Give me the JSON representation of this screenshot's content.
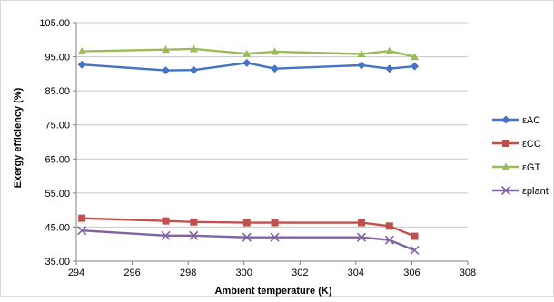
{
  "chart_data": {
    "type": "line",
    "xlabel": "Ambient temperature (K)",
    "ylabel": "Exergy efficiency (%)",
    "xlim": [
      294,
      308
    ],
    "ylim": [
      35,
      105
    ],
    "x_ticks": [
      "294",
      "296",
      "298",
      "300",
      "302",
      "304",
      "306",
      "308"
    ],
    "y_ticks": [
      "105.00",
      "95.00",
      "85.00",
      "75.00",
      "65.00",
      "55.00",
      "45.00",
      "35.00"
    ],
    "grid": "horizontal",
    "legend_position": "right",
    "series": [
      {
        "name": "εAC",
        "color": "#4472c4",
        "marker": "diamond",
        "x": [
          294.2,
          297.2,
          298.2,
          300.1,
          301.1,
          304.2,
          305.2,
          306.1
        ],
        "values": [
          92.7,
          91.0,
          91.1,
          93.2,
          91.5,
          92.5,
          91.5,
          92.2
        ]
      },
      {
        "name": "εCC",
        "color": "#c0504d",
        "marker": "square",
        "x": [
          294.2,
          297.2,
          298.2,
          300.1,
          301.1,
          304.2,
          305.2,
          306.1
        ],
        "values": [
          47.6,
          46.8,
          46.5,
          46.3,
          46.3,
          46.3,
          45.3,
          42.3
        ]
      },
      {
        "name": "εGT",
        "color": "#9bbb59",
        "marker": "triangle",
        "x": [
          294.2,
          297.2,
          298.2,
          300.1,
          301.1,
          304.2,
          305.2,
          306.1
        ],
        "values": [
          96.6,
          97.1,
          97.3,
          95.9,
          96.5,
          95.8,
          96.7,
          95.0
        ]
      },
      {
        "name": "εplant",
        "color": "#8064a2",
        "marker": "x",
        "x": [
          294.2,
          297.2,
          298.2,
          300.1,
          301.1,
          304.2,
          305.2,
          306.1
        ],
        "values": [
          44.0,
          42.5,
          42.5,
          42.0,
          42.0,
          42.0,
          41.2,
          38.2
        ]
      }
    ]
  }
}
